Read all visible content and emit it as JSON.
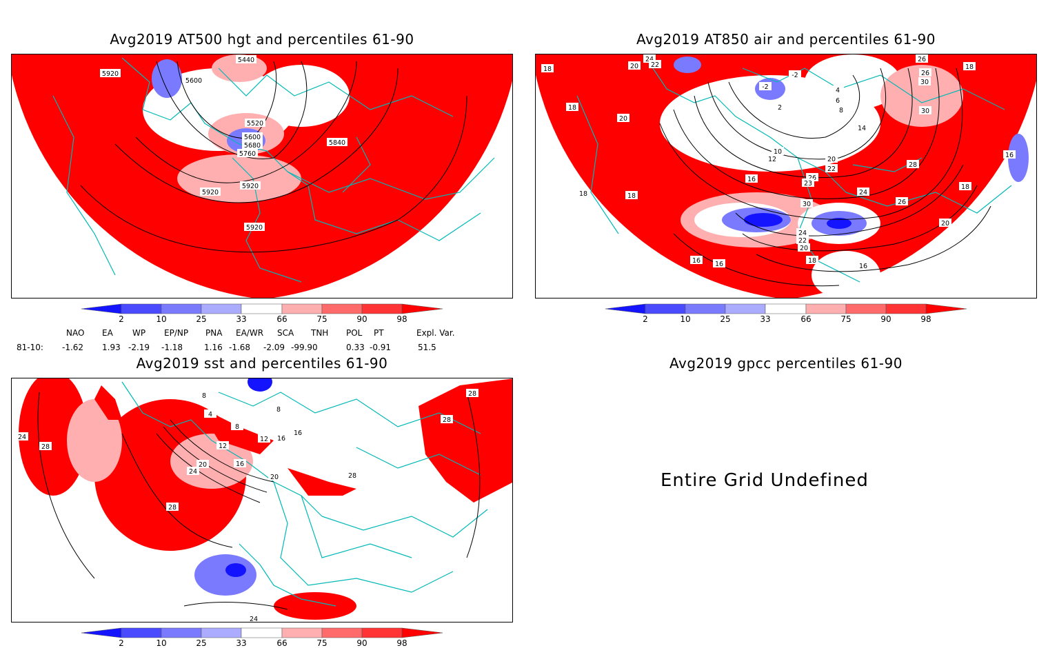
{
  "panels": {
    "p1": {
      "title": "Avg2019 AT500 hgt and percentiles 61-90",
      "contour_labels": [
        "5440",
        "5920",
        "5600",
        "5520",
        "5600",
        "5680",
        "5760",
        "5840",
        "5920",
        "5920",
        "5920"
      ]
    },
    "p2": {
      "title": "Avg2019 AT850 air and percentiles 61-90",
      "contour_labels": [
        "24",
        "22",
        "20",
        "18",
        "18",
        "18",
        "20",
        "18",
        "-2",
        "-2",
        "4",
        "6",
        "8",
        "2",
        "14",
        "10",
        "12",
        "20",
        "22",
        "26",
        "28",
        "23",
        "24",
        "30",
        "26",
        "16",
        "24",
        "22",
        "20",
        "18",
        "16",
        "16",
        "16",
        "20",
        "18",
        "16",
        "26",
        "30",
        "18",
        "30",
        "26"
      ]
    },
    "p3": {
      "title": "Avg2019 sst and percentiles 61-90",
      "contour_labels": [
        "8",
        "4",
        "8",
        "8",
        "12",
        "12",
        "16",
        "20",
        "16",
        "20",
        "24",
        "28",
        "28",
        "28",
        "24",
        "28",
        "16",
        "28",
        "24"
      ]
    },
    "p4": {
      "title": "Avg2019 gpcc percentiles 61-90",
      "message": "Entire Grid Undefined"
    }
  },
  "colorbar": {
    "labels": [
      "2",
      "10",
      "25",
      "33",
      "66",
      "75",
      "90",
      "98"
    ],
    "colors": [
      "#1414ff",
      "#4a4aff",
      "#7a7aff",
      "#ababff",
      "#ffffff",
      "#ffafaf",
      "#ff6a6a",
      "#ff3535",
      "#ff0000"
    ]
  },
  "teleconnection": {
    "headers": [
      "NAO",
      "EA",
      "WP",
      "EP/NP",
      "PNA",
      "EA/WR",
      "SCA",
      "TNH",
      "POL",
      "PT",
      "Expl. Var."
    ],
    "row_label": "81-10:",
    "values": [
      "-1.62",
      "1.93",
      "-2.19",
      "-1.18",
      "1.16",
      "-1.68",
      "-2.09",
      "-99.90",
      "0.33",
      "-0.91",
      "51.5"
    ]
  }
}
